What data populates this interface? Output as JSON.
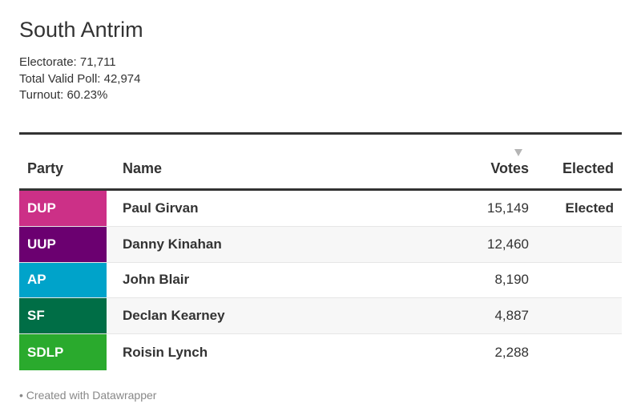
{
  "title": "South Antrim",
  "stats": {
    "electorate": "Electorate: 71,711",
    "total_valid_poll": "Total Valid Poll: 42,974",
    "turnout": "Turnout: 60.23%"
  },
  "chart_data": {
    "type": "table",
    "columns": [
      "Party",
      "Name",
      "Votes",
      "Elected"
    ],
    "sorted_by": "Votes",
    "rows": [
      {
        "party": "DUP",
        "name": "Paul Girvan",
        "votes": "15,149",
        "elected": "Elected",
        "color": "#cc3087"
      },
      {
        "party": "UUP",
        "name": "Danny Kinahan",
        "votes": "12,460",
        "elected": "",
        "color": "#6b0070"
      },
      {
        "party": "AP",
        "name": "John Blair",
        "votes": "8,190",
        "elected": "",
        "color": "#00a3ca"
      },
      {
        "party": "SF",
        "name": "Declan Kearney",
        "votes": "4,887",
        "elected": "",
        "color": "#006e46"
      },
      {
        "party": "SDLP",
        "name": "Roisin Lynch",
        "votes": "2,288",
        "elected": "",
        "color": "#2aaa2d"
      }
    ]
  },
  "footer": "• Created with Datawrapper"
}
